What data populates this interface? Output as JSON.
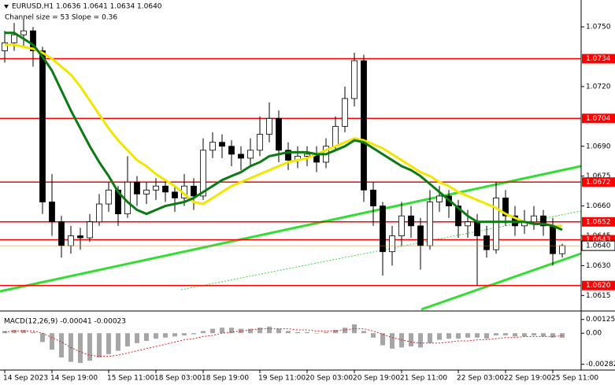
{
  "chart_data": {
    "type": "candlestick",
    "title": "EURUSD,H1  1.0636 1.0641 1.0634 1.0640",
    "subtitle": "Channel size = 53 Slope = 0.36",
    "x": [
      "14 Sep 2023",
      null,
      null,
      null,
      null,
      "14 Sep 19:00",
      null,
      null,
      null,
      null,
      null,
      "15 Sep 11:00",
      null,
      null,
      null,
      null,
      "18 Sep 03:00",
      null,
      null,
      null,
      null,
      "18 Sep 19:00",
      null,
      null,
      null,
      null,
      null,
      "19 Sep 11:00",
      null,
      null,
      null,
      null,
      "20 Sep 03:00",
      null,
      null,
      null,
      null,
      "20 Sep 19:00",
      null,
      null,
      null,
      null,
      "21 Sep 11:00",
      null,
      null,
      null,
      null,
      null,
      "22 Sep 03:00",
      null,
      null,
      null,
      null,
      "22 Sep 19:00",
      null,
      null,
      null,
      null,
      "25 Sep 11:00",
      null
    ],
    "candles": [
      [
        1.0738,
        1.0748,
        1.0732,
        1.0742
      ],
      [
        1.0742,
        1.0752,
        1.0738,
        1.0746
      ],
      [
        1.0746,
        1.0754,
        1.074,
        1.0748
      ],
      [
        1.0748,
        1.075,
        1.073,
        1.0738
      ],
      [
        1.0738,
        1.074,
        1.0656,
        1.0662
      ],
      [
        1.0662,
        1.0676,
        1.0645,
        1.0652
      ],
      [
        1.0652,
        1.0655,
        1.0634,
        1.064
      ],
      [
        1.064,
        1.065,
        1.0636,
        1.0645
      ],
      [
        1.0645,
        1.0649,
        1.0638,
        1.0644
      ],
      [
        1.0644,
        1.0656,
        1.0642,
        1.0652
      ],
      [
        1.0652,
        1.0666,
        1.065,
        1.0661
      ],
      [
        1.0661,
        1.0672,
        1.0657,
        1.0668
      ],
      [
        1.0668,
        1.067,
        1.065,
        1.0656
      ],
      [
        1.0656,
        1.0685,
        1.0654,
        1.0672
      ],
      [
        1.0672,
        1.0675,
        1.066,
        1.0666
      ],
      [
        1.0666,
        1.0672,
        1.0661,
        1.0668
      ],
      [
        1.0668,
        1.0674,
        1.0663,
        1.067
      ],
      [
        1.067,
        1.0673,
        1.0662,
        1.0667
      ],
      [
        1.0667,
        1.067,
        1.0657,
        1.0664
      ],
      [
        1.0664,
        1.0676,
        1.066,
        1.067
      ],
      [
        1.067,
        1.0674,
        1.0658,
        1.0665
      ],
      [
        1.0665,
        1.0694,
        1.0663,
        1.0688
      ],
      [
        1.0688,
        1.0697,
        1.0684,
        1.0692
      ],
      [
        1.0692,
        1.0696,
        1.0684,
        1.069
      ],
      [
        1.069,
        1.0693,
        1.068,
        1.0686
      ],
      [
        1.0686,
        1.069,
        1.0678,
        1.0684
      ],
      [
        1.0684,
        1.0694,
        1.068,
        1.0688
      ],
      [
        1.0688,
        1.0705,
        1.0685,
        1.0696
      ],
      [
        1.0696,
        1.0712,
        1.0692,
        1.0704
      ],
      [
        1.0704,
        1.0708,
        1.0682,
        1.0688
      ],
      [
        1.0688,
        1.0692,
        1.0678,
        1.0683
      ],
      [
        1.0683,
        1.069,
        1.0679,
        1.0685
      ],
      [
        1.0685,
        1.069,
        1.068,
        1.0686
      ],
      [
        1.0686,
        1.069,
        1.0677,
        1.0682
      ],
      [
        1.0682,
        1.0694,
        1.0679,
        1.069
      ],
      [
        1.069,
        1.0705,
        1.0688,
        1.07
      ],
      [
        1.07,
        1.072,
        1.0697,
        1.0714
      ],
      [
        1.0714,
        1.0737,
        1.071,
        1.0733
      ],
      [
        1.0733,
        1.0736,
        1.0662,
        1.0668
      ],
      [
        1.0668,
        1.0672,
        1.065,
        1.066
      ],
      [
        1.066,
        1.0662,
        1.0625,
        1.0637
      ],
      [
        1.0637,
        1.065,
        1.063,
        1.0645
      ],
      [
        1.0645,
        1.0662,
        1.064,
        1.0655
      ],
      [
        1.0655,
        1.066,
        1.0644,
        1.065
      ],
      [
        1.065,
        1.0654,
        1.0628,
        1.064
      ],
      [
        1.064,
        1.0668,
        1.0638,
        1.0662
      ],
      [
        1.0662,
        1.067,
        1.0657,
        1.0665
      ],
      [
        1.0665,
        1.0668,
        1.0654,
        1.066
      ],
      [
        1.066,
        1.0663,
        1.0644,
        1.065
      ],
      [
        1.065,
        1.0658,
        1.0644,
        1.0652
      ],
      [
        1.0652,
        1.0656,
        1.062,
        1.0645
      ],
      [
        1.0645,
        1.065,
        1.0634,
        1.0638
      ],
      [
        1.0638,
        1.0672,
        1.0636,
        1.0664
      ],
      [
        1.0664,
        1.0668,
        1.065,
        1.0655
      ],
      [
        1.0655,
        1.066,
        1.0645,
        1.065
      ],
      [
        1.065,
        1.0658,
        1.0646,
        1.0652
      ],
      [
        1.0652,
        1.066,
        1.0648,
        1.0655
      ],
      [
        1.0655,
        1.0658,
        1.0645,
        1.065
      ],
      [
        1.065,
        1.0654,
        1.063,
        1.0636
      ],
      [
        1.0636,
        1.0641,
        1.0634,
        1.064
      ]
    ],
    "moving_averages": [
      {
        "color": "#f2e600",
        "values": [
          1.0741,
          1.0741,
          1.074,
          1.0739,
          1.0737,
          1.0734,
          1.073,
          1.0726,
          1.072,
          1.0713,
          1.0706,
          1.0699,
          1.0693,
          1.0688,
          1.0683,
          1.068,
          1.0676,
          1.0673,
          1.067,
          1.0666,
          1.0662,
          1.0661,
          1.0664,
          1.0667,
          1.067,
          1.0672,
          1.0674,
          1.0676,
          1.0678,
          1.068,
          1.0682,
          1.0683,
          1.0684,
          1.0686,
          1.0688,
          1.069,
          1.0692,
          1.0694,
          1.0693,
          1.0691,
          1.0689,
          1.0686,
          1.0683,
          1.068,
          1.0677,
          1.0675,
          1.0672,
          1.067,
          1.0667,
          1.0665,
          1.0663,
          1.0661,
          1.0659,
          1.0656,
          1.0654,
          1.0652,
          1.0651,
          1.0651,
          1.065,
          1.065
        ]
      },
      {
        "color": "#0b7a12",
        "values": [
          1.0747,
          1.0747,
          1.0744,
          1.0741,
          1.0735,
          1.0728,
          1.0718,
          1.0708,
          1.0699,
          1.069,
          1.0682,
          1.0675,
          1.0667,
          1.0662,
          1.0658,
          1.0656,
          1.0658,
          1.066,
          1.0661,
          1.0662,
          1.0664,
          1.0667,
          1.067,
          1.0673,
          1.0675,
          1.0677,
          1.068,
          1.0682,
          1.0685,
          1.0686,
          1.0687,
          1.0687,
          1.0687,
          1.0686,
          1.0686,
          1.0688,
          1.069,
          1.0693,
          1.0692,
          1.0689,
          1.0686,
          1.0683,
          1.068,
          1.0678,
          1.0675,
          1.0671,
          1.0667,
          1.0663,
          1.0659,
          1.0655,
          1.0652,
          1.0652,
          1.0652,
          1.0652,
          1.0652,
          1.0652,
          1.0651,
          1.0651,
          1.065,
          1.0648
        ]
      }
    ],
    "ylim": [
      1.0608,
      1.07635
    ],
    "yticks": [
      {
        "value": 1.075,
        "label": "1.0750"
      },
      {
        "value": 1.072,
        "label": "1.0720"
      },
      {
        "value": 1.069,
        "label": "1.0690"
      },
      1.0675,
      {
        "value": 1.066,
        "label": "1.0660"
      },
      1.0645,
      {
        "value": 1.063,
        "label": "1.0630"
      },
      1.0615
    ],
    "levels": [
      1.0734,
      1.0704,
      1.0672,
      1.0652,
      1.0643,
      {
        "value": 1.062,
        "label": "1.0620"
      }
    ],
    "level_color": "#ff0000",
    "current_price": {
      "value": 1.064,
      "label": "1.0640"
    },
    "indicator": {
      "type": "macd",
      "title": "MACD(12,26,9) -0.00041 -0.00023",
      "ylim": [
        -0.0032,
        0.0018
      ],
      "yticks": [
        0.00125,
        {
          "value": 0,
          "label": "0.00"
        },
        -0.00282
      ],
      "histogram": {
        "color": "#a6a6a6",
        "values": [
          0.0002,
          0.0003,
          0.0003,
          0.0001,
          -0.0008,
          -0.0015,
          -0.0022,
          -0.0026,
          -0.0027,
          -0.0025,
          -0.0022,
          -0.0019,
          -0.0016,
          -0.0012,
          -0.0009,
          -0.0007,
          -0.0005,
          -0.0004,
          -0.0003,
          -0.0002,
          -0.0001,
          0.0002,
          0.0004,
          0.0005,
          0.0005,
          0.0004,
          0.0004,
          0.0005,
          0.0006,
          0.0004,
          0.0002,
          0.0001,
          0.0001,
          0,
          0.0001,
          0.0003,
          0.0005,
          0.0008,
          0.0002,
          -0.0004,
          -0.0011,
          -0.0014,
          -0.0013,
          -0.0012,
          -0.0013,
          -0.0009,
          -0.0006,
          -0.0005,
          -0.0005,
          -0.0004,
          -0.0004,
          -0.0005,
          -0.0002,
          -0.0002,
          -0.0003,
          -0.0003,
          -0.0002,
          -0.0003,
          -0.0004,
          -0.00041
        ]
      },
      "signal": {
        "color": "#e02020",
        "values": [
          0.0001,
          0.0002,
          0.0002,
          0.0002,
          0,
          -0.0004,
          -0.0008,
          -0.0013,
          -0.0017,
          -0.002,
          -0.0021,
          -0.0021,
          -0.002,
          -0.0018,
          -0.0016,
          -0.0014,
          -0.0012,
          -0.001,
          -0.0008,
          -0.0006,
          -0.0005,
          -0.0003,
          -0.0002,
          0,
          0.0001,
          0.0002,
          0.0003,
          0.0004,
          0.0004,
          0.0004,
          0.0004,
          0.0003,
          0.0003,
          0.0002,
          0.0002,
          0.0002,
          0.0003,
          0.0004,
          0.0004,
          0.0002,
          -0.0001,
          -0.0004,
          -0.0006,
          -0.0008,
          -0.0009,
          -0.0009,
          -0.0009,
          -0.0008,
          -0.0007,
          -0.0007,
          -0.0006,
          -0.0006,
          -0.0005,
          -0.0004,
          -0.0004,
          -0.0003,
          -0.0003,
          -0.0003,
          -0.0003,
          -0.00023
        ]
      }
    }
  }
}
